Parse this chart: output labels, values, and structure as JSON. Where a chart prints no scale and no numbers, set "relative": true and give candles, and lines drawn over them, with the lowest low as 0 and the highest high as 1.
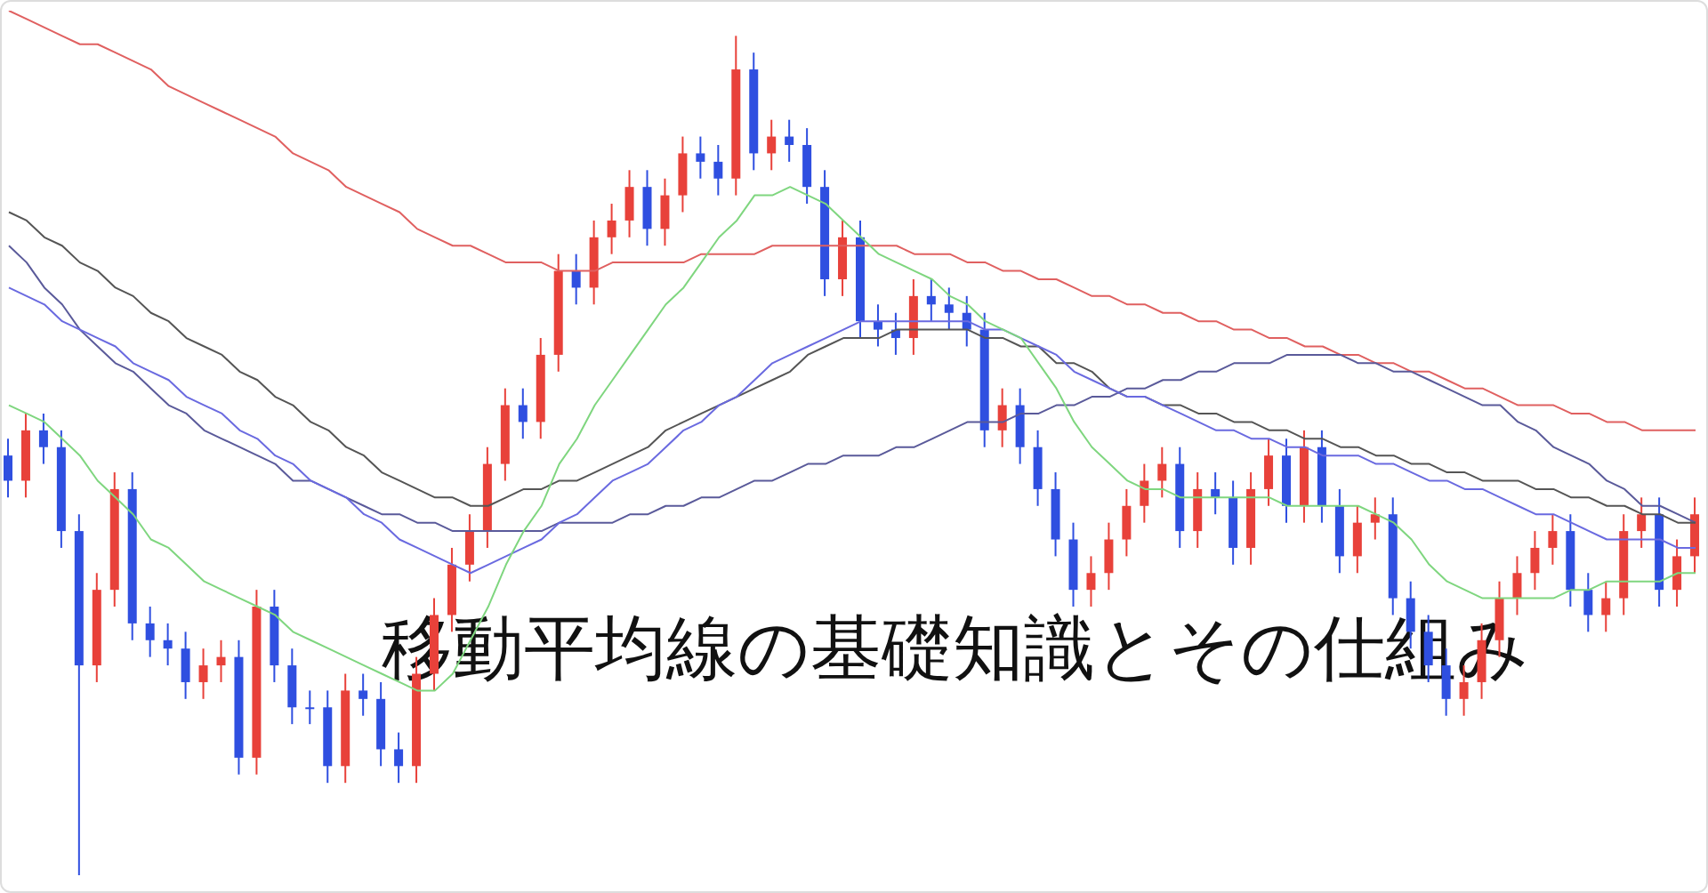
{
  "chart_data": {
    "type": "candlestick",
    "title": "移動平均線の基礎知識とその仕組み",
    "relative": true,
    "categories": [
      null,
      null,
      null,
      null,
      null,
      null,
      null,
      null,
      null,
      null,
      null,
      null,
      null,
      null,
      null,
      null,
      null,
      null,
      null,
      null,
      null,
      null,
      null,
      null,
      null,
      null,
      null,
      null,
      null,
      null,
      null,
      null,
      null,
      null,
      null,
      null,
      null,
      null,
      null,
      null,
      null,
      null,
      null,
      null,
      null,
      null,
      null,
      null,
      null,
      null,
      null,
      null,
      null,
      null,
      null,
      null,
      null,
      null,
      null,
      null,
      null,
      null,
      null,
      null,
      null,
      null,
      null,
      null,
      null,
      null,
      null,
      null,
      null,
      null,
      null,
      null,
      null,
      null,
      null,
      null,
      null,
      null,
      null,
      null,
      null,
      null,
      null,
      null,
      null,
      null,
      null,
      null,
      null,
      null,
      null,
      null
    ],
    "ohlc": [
      [
        0.5,
        0.52,
        0.45,
        0.47
      ],
      [
        0.47,
        0.55,
        0.45,
        0.53
      ],
      [
        0.53,
        0.55,
        0.49,
        0.51
      ],
      [
        0.51,
        0.53,
        0.39,
        0.41
      ],
      [
        0.41,
        0.43,
        0,
        0.25
      ],
      [
        0.25,
        0.36,
        0.23,
        0.34
      ],
      [
        0.34,
        0.48,
        0.32,
        0.46
      ],
      [
        0.46,
        0.48,
        0.28,
        0.3
      ],
      [
        0.3,
        0.32,
        0.26,
        0.28
      ],
      [
        0.28,
        0.3,
        0.25,
        0.27
      ],
      [
        0.27,
        0.29,
        0.21,
        0.23
      ],
      [
        0.23,
        0.27,
        0.21,
        0.25
      ],
      [
        0.25,
        0.28,
        0.23,
        0.26
      ],
      [
        0.26,
        0.28,
        0.12,
        0.14
      ],
      [
        0.14,
        0.34,
        0.12,
        0.32
      ],
      [
        0.32,
        0.34,
        0.23,
        0.25
      ],
      [
        0.25,
        0.27,
        0.18,
        0.2
      ],
      [
        0.2,
        0.22,
        0.18,
        0.2
      ],
      [
        0.2,
        0.22,
        0.11,
        0.13
      ],
      [
        0.13,
        0.24,
        0.11,
        0.22
      ],
      [
        0.22,
        0.24,
        0.19,
        0.21
      ],
      [
        0.21,
        0.23,
        0.13,
        0.15
      ],
      [
        0.15,
        0.17,
        0.11,
        0.13
      ],
      [
        0.13,
        0.26,
        0.11,
        0.24
      ],
      [
        0.24,
        0.33,
        0.22,
        0.31
      ],
      [
        0.31,
        0.39,
        0.29,
        0.37
      ],
      [
        0.37,
        0.43,
        0.35,
        0.41
      ],
      [
        0.41,
        0.51,
        0.39,
        0.49
      ],
      [
        0.49,
        0.58,
        0.47,
        0.56
      ],
      [
        0.56,
        0.58,
        0.52,
        0.54
      ],
      [
        0.54,
        0.64,
        0.52,
        0.62
      ],
      [
        0.62,
        0.74,
        0.6,
        0.72
      ],
      [
        0.72,
        0.74,
        0.68,
        0.7
      ],
      [
        0.7,
        0.78,
        0.68,
        0.76
      ],
      [
        0.76,
        0.8,
        0.74,
        0.78
      ],
      [
        0.78,
        0.84,
        0.76,
        0.82
      ],
      [
        0.82,
        0.84,
        0.75,
        0.77
      ],
      [
        0.77,
        0.83,
        0.75,
        0.81
      ],
      [
        0.81,
        0.88,
        0.79,
        0.86
      ],
      [
        0.86,
        0.88,
        0.83,
        0.85
      ],
      [
        0.85,
        0.87,
        0.81,
        0.83
      ],
      [
        0.83,
        1,
        0.81,
        0.96
      ],
      [
        0.96,
        0.98,
        0.84,
        0.86
      ],
      [
        0.86,
        0.9,
        0.84,
        0.88
      ],
      [
        0.88,
        0.9,
        0.85,
        0.87
      ],
      [
        0.87,
        0.89,
        0.8,
        0.82
      ],
      [
        0.82,
        0.84,
        0.69,
        0.71
      ],
      [
        0.71,
        0.78,
        0.69,
        0.76
      ],
      [
        0.76,
        0.78,
        0.64,
        0.66
      ],
      [
        0.66,
        0.68,
        0.63,
        0.65
      ],
      [
        0.65,
        0.67,
        0.62,
        0.64
      ],
      [
        0.64,
        0.71,
        0.62,
        0.69
      ],
      [
        0.69,
        0.71,
        0.66,
        0.68
      ],
      [
        0.68,
        0.7,
        0.65,
        0.67
      ],
      [
        0.67,
        0.69,
        0.63,
        0.65
      ],
      [
        0.65,
        0.67,
        0.51,
        0.53
      ],
      [
        0.53,
        0.58,
        0.51,
        0.56
      ],
      [
        0.56,
        0.58,
        0.49,
        0.51
      ],
      [
        0.51,
        0.53,
        0.44,
        0.46
      ],
      [
        0.46,
        0.48,
        0.38,
        0.4
      ],
      [
        0.4,
        0.42,
        0.32,
        0.34
      ],
      [
        0.34,
        0.38,
        0.32,
        0.36
      ],
      [
        0.36,
        0.42,
        0.34,
        0.4
      ],
      [
        0.4,
        0.46,
        0.38,
        0.44
      ],
      [
        0.44,
        0.49,
        0.42,
        0.47
      ],
      [
        0.47,
        0.51,
        0.45,
        0.49
      ],
      [
        0.49,
        0.51,
        0.39,
        0.41
      ],
      [
        0.41,
        0.48,
        0.39,
        0.46
      ],
      [
        0.46,
        0.48,
        0.43,
        0.45
      ],
      [
        0.45,
        0.47,
        0.37,
        0.39
      ],
      [
        0.39,
        0.48,
        0.37,
        0.46
      ],
      [
        0.46,
        0.52,
        0.44,
        0.5
      ],
      [
        0.5,
        0.52,
        0.42,
        0.44
      ],
      [
        0.44,
        0.53,
        0.42,
        0.51
      ],
      [
        0.51,
        0.53,
        0.42,
        0.44
      ],
      [
        0.44,
        0.46,
        0.36,
        0.38
      ],
      [
        0.38,
        0.44,
        0.36,
        0.42
      ],
      [
        0.42,
        0.45,
        0.4,
        0.43
      ],
      [
        0.43,
        0.45,
        0.31,
        0.33
      ],
      [
        0.33,
        0.35,
        0.27,
        0.29
      ],
      [
        0.29,
        0.31,
        0.23,
        0.25
      ],
      [
        0.25,
        0.27,
        0.19,
        0.21
      ],
      [
        0.21,
        0.25,
        0.19,
        0.23
      ],
      [
        0.23,
        0.3,
        0.21,
        0.28
      ],
      [
        0.28,
        0.35,
        0.26,
        0.33
      ],
      [
        0.33,
        0.38,
        0.31,
        0.36
      ],
      [
        0.36,
        0.41,
        0.34,
        0.39
      ],
      [
        0.39,
        0.43,
        0.37,
        0.41
      ],
      [
        0.41,
        0.43,
        0.32,
        0.34
      ],
      [
        0.34,
        0.36,
        0.29,
        0.31
      ],
      [
        0.31,
        0.35,
        0.29,
        0.33
      ],
      [
        0.33,
        0.43,
        0.31,
        0.41
      ],
      [
        0.41,
        0.45,
        0.39,
        0.43
      ],
      [
        0.43,
        0.45,
        0.32,
        0.34
      ],
      [
        0.34,
        0.4,
        0.32,
        0.38
      ],
      [
        0.38,
        0.45,
        0.36,
        0.43
      ]
    ],
    "colors": [
      "#2f4fe0",
      "#e8413a",
      "#2f4fe0",
      "#2f4fe0",
      "#2f4fe0",
      "#e8413a",
      "#e8413a",
      "#2f4fe0",
      "#2f4fe0",
      "#2f4fe0",
      "#2f4fe0",
      "#e8413a",
      "#e8413a",
      "#2f4fe0",
      "#e8413a",
      "#2f4fe0",
      "#2f4fe0",
      "#2f4fe0",
      "#2f4fe0",
      "#e8413a",
      "#2f4fe0",
      "#2f4fe0",
      "#2f4fe0",
      "#e8413a",
      "#e8413a",
      "#e8413a",
      "#e8413a",
      "#e8413a",
      "#e8413a",
      "#2f4fe0",
      "#e8413a",
      "#e8413a",
      "#2f4fe0",
      "#e8413a",
      "#e8413a",
      "#e8413a",
      "#2f4fe0",
      "#e8413a",
      "#e8413a",
      "#2f4fe0",
      "#2f4fe0",
      "#e8413a",
      "#2f4fe0",
      "#e8413a",
      "#2f4fe0",
      "#2f4fe0",
      "#2f4fe0",
      "#e8413a",
      "#2f4fe0",
      "#2f4fe0",
      "#2f4fe0",
      "#e8413a",
      "#2f4fe0",
      "#2f4fe0",
      "#2f4fe0",
      "#2f4fe0",
      "#e8413a",
      "#2f4fe0",
      "#2f4fe0",
      "#2f4fe0",
      "#2f4fe0",
      "#e8413a",
      "#e8413a",
      "#e8413a",
      "#e8413a",
      "#e8413a",
      "#2f4fe0",
      "#e8413a",
      "#2f4fe0",
      "#2f4fe0",
      "#e8413a",
      "#e8413a",
      "#2f4fe0",
      "#e8413a",
      "#2f4fe0",
      "#2f4fe0",
      "#e8413a",
      "#e8413a",
      "#2f4fe0",
      "#2f4fe0",
      "#2f4fe0",
      "#2f4fe0",
      "#e8413a",
      "#e8413a",
      "#e8413a",
      "#e8413a",
      "#e8413a",
      "#e8413a",
      "#2f4fe0",
      "#2f4fe0",
      "#e8413a",
      "#e8413a",
      "#e8413a",
      "#2f4fe0",
      "#e8413a",
      "#e8413a"
    ],
    "series": [
      {
        "type": "line",
        "color": "#e06060",
        "values": [
          1.03,
          1.02,
          1.01,
          1.0,
          0.99,
          0.99,
          0.98,
          0.97,
          0.96,
          0.94,
          0.93,
          0.92,
          0.91,
          0.9,
          0.89,
          0.88,
          0.86,
          0.85,
          0.84,
          0.82,
          0.81,
          0.8,
          0.79,
          0.77,
          0.76,
          0.75,
          0.75,
          0.74,
          0.73,
          0.73,
          0.73,
          0.72,
          0.72,
          0.72,
          0.73,
          0.73,
          0.73,
          0.73,
          0.73,
          0.74,
          0.74,
          0.74,
          0.74,
          0.75,
          0.75,
          0.75,
          0.75,
          0.75,
          0.75,
          0.75,
          0.75,
          0.74,
          0.74,
          0.74,
          0.73,
          0.73,
          0.72,
          0.72,
          0.71,
          0.71,
          0.7,
          0.69,
          0.69,
          0.68,
          0.68,
          0.67,
          0.67,
          0.66,
          0.66,
          0.65,
          0.65,
          0.64,
          0.64,
          0.63,
          0.63,
          0.62,
          0.62,
          0.61,
          0.61,
          0.6,
          0.6,
          0.59,
          0.58,
          0.58,
          0.57,
          0.56,
          0.56,
          0.56,
          0.55,
          0.55,
          0.54,
          0.54,
          0.53,
          0.53,
          0.53,
          0.53
        ]
      },
      {
        "type": "line",
        "color": "#5a5a9a",
        "values": [
          0.75,
          0.73,
          0.7,
          0.68,
          0.65,
          0.63,
          0.61,
          0.6,
          0.58,
          0.56,
          0.55,
          0.53,
          0.52,
          0.51,
          0.5,
          0.49,
          0.47,
          0.47,
          0.46,
          0.45,
          0.44,
          0.43,
          0.43,
          0.42,
          0.42,
          0.41,
          0.41,
          0.41,
          0.41,
          0.41,
          0.41,
          0.42,
          0.42,
          0.42,
          0.42,
          0.43,
          0.43,
          0.44,
          0.44,
          0.45,
          0.45,
          0.46,
          0.47,
          0.47,
          0.48,
          0.49,
          0.49,
          0.5,
          0.5,
          0.5,
          0.51,
          0.51,
          0.52,
          0.53,
          0.54,
          0.54,
          0.54,
          0.55,
          0.55,
          0.56,
          0.56,
          0.57,
          0.57,
          0.58,
          0.58,
          0.59,
          0.59,
          0.6,
          0.6,
          0.61,
          0.61,
          0.61,
          0.62,
          0.62,
          0.62,
          0.62,
          0.61,
          0.61,
          0.6,
          0.6,
          0.59,
          0.58,
          0.57,
          0.56,
          0.56,
          0.54,
          0.53,
          0.51,
          0.5,
          0.49,
          0.47,
          0.46,
          0.44,
          0.44,
          0.43,
          0.42
        ]
      },
      {
        "type": "line",
        "color": "#555555",
        "values": [
          0.79,
          0.78,
          0.76,
          0.75,
          0.73,
          0.72,
          0.7,
          0.69,
          0.67,
          0.66,
          0.64,
          0.63,
          0.62,
          0.6,
          0.59,
          0.57,
          0.56,
          0.54,
          0.53,
          0.51,
          0.5,
          0.48,
          0.47,
          0.46,
          0.45,
          0.45,
          0.44,
          0.44,
          0.45,
          0.46,
          0.46,
          0.47,
          0.47,
          0.48,
          0.49,
          0.5,
          0.51,
          0.53,
          0.54,
          0.55,
          0.56,
          0.57,
          0.58,
          0.59,
          0.6,
          0.62,
          0.63,
          0.64,
          0.64,
          0.64,
          0.65,
          0.65,
          0.65,
          0.65,
          0.65,
          0.64,
          0.64,
          0.63,
          0.63,
          0.61,
          0.61,
          0.6,
          0.58,
          0.57,
          0.57,
          0.56,
          0.56,
          0.55,
          0.55,
          0.54,
          0.54,
          0.53,
          0.53,
          0.52,
          0.52,
          0.51,
          0.51,
          0.5,
          0.5,
          0.49,
          0.49,
          0.48,
          0.48,
          0.47,
          0.47,
          0.47,
          0.46,
          0.46,
          0.45,
          0.45,
          0.44,
          0.44,
          0.43,
          0.43,
          0.42,
          0.42
        ]
      },
      {
        "type": "line",
        "color": "#6a6ae0",
        "values": [
          0.7,
          0.69,
          0.68,
          0.66,
          0.65,
          0.64,
          0.63,
          0.61,
          0.6,
          0.59,
          0.57,
          0.56,
          0.55,
          0.53,
          0.52,
          0.5,
          0.49,
          0.47,
          0.46,
          0.45,
          0.43,
          0.42,
          0.4,
          0.39,
          0.38,
          0.37,
          0.36,
          0.37,
          0.38,
          0.39,
          0.4,
          0.42,
          0.43,
          0.45,
          0.47,
          0.48,
          0.49,
          0.51,
          0.53,
          0.54,
          0.56,
          0.57,
          0.59,
          0.61,
          0.62,
          0.63,
          0.64,
          0.65,
          0.66,
          0.66,
          0.66,
          0.66,
          0.66,
          0.66,
          0.66,
          0.65,
          0.65,
          0.64,
          0.63,
          0.62,
          0.6,
          0.59,
          0.58,
          0.57,
          0.57,
          0.56,
          0.55,
          0.54,
          0.53,
          0.53,
          0.52,
          0.52,
          0.51,
          0.51,
          0.5,
          0.5,
          0.5,
          0.49,
          0.49,
          0.48,
          0.47,
          0.47,
          0.46,
          0.46,
          0.45,
          0.44,
          0.43,
          0.43,
          0.42,
          0.41,
          0.4,
          0.4,
          0.4,
          0.4,
          0.39,
          0.39
        ]
      },
      {
        "type": "line",
        "color": "#7fd67f",
        "values": [
          0.56,
          0.55,
          0.54,
          0.52,
          0.5,
          0.47,
          0.45,
          0.43,
          0.4,
          0.39,
          0.37,
          0.35,
          0.34,
          0.33,
          0.32,
          0.31,
          0.29,
          0.28,
          0.27,
          0.26,
          0.25,
          0.24,
          0.23,
          0.22,
          0.22,
          0.24,
          0.28,
          0.32,
          0.37,
          0.41,
          0.44,
          0.49,
          0.52,
          0.56,
          0.59,
          0.62,
          0.65,
          0.68,
          0.7,
          0.73,
          0.76,
          0.78,
          0.81,
          0.81,
          0.82,
          0.81,
          0.8,
          0.78,
          0.76,
          0.74,
          0.73,
          0.72,
          0.71,
          0.69,
          0.68,
          0.66,
          0.65,
          0.64,
          0.61,
          0.58,
          0.54,
          0.51,
          0.49,
          0.47,
          0.46,
          0.46,
          0.45,
          0.45,
          0.45,
          0.45,
          0.45,
          0.45,
          0.44,
          0.44,
          0.44,
          0.44,
          0.44,
          0.43,
          0.42,
          0.4,
          0.37,
          0.35,
          0.34,
          0.33,
          0.33,
          0.33,
          0.33,
          0.33,
          0.34,
          0.34,
          0.35,
          0.35,
          0.35,
          0.35,
          0.36,
          0.36
        ]
      }
    ]
  }
}
